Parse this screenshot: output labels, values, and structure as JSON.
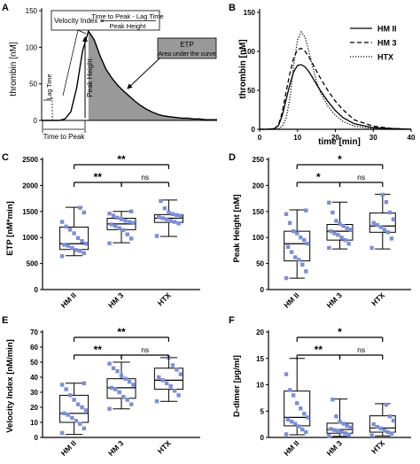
{
  "panels": {
    "A": {
      "letter": "A",
      "ylabel": "thrombin [nM]",
      "yticks": [
        "0",
        "50",
        "100",
        "150"
      ],
      "formula_left": "Velocity Index =",
      "formula_num": "Time to Peak - Lag Time",
      "formula_den": "Peak Height",
      "etp_title": "ETP",
      "etp_sub": "Area under the curve",
      "lag_time": "Lag Time",
      "peak_height": "Peak Height",
      "time_to_peak": "Time to Peak"
    },
    "B": {
      "letter": "B",
      "ylabel": "thrombin [nM]",
      "xlabel": "time [min]",
      "yticks": [
        "0",
        "50",
        "100",
        "150"
      ],
      "xticks": [
        "0",
        "10",
        "20",
        "30",
        "40"
      ],
      "legend": [
        "HM II",
        "HM 3",
        "HTX"
      ]
    },
    "C": {
      "letter": "C",
      "ylabel": "ETP [nM*min]",
      "yticks": [
        "0",
        "500",
        "1000",
        "1500",
        "2000",
        "2500"
      ],
      "categories": [
        "HM II",
        "HM 3",
        "HTX"
      ],
      "sig_top": "**",
      "sig_left": "**",
      "sig_right": "ns"
    },
    "D": {
      "letter": "D",
      "ylabel": "Peak Height [nM]",
      "yticks": [
        "0",
        "50",
        "100",
        "150",
        "200",
        "250"
      ],
      "categories": [
        "HM II",
        "HM 3",
        "HTX"
      ],
      "sig_top": "*",
      "sig_left": "*",
      "sig_right": "ns"
    },
    "E": {
      "letter": "E",
      "ylabel": "Velocity Index [nM/min]",
      "yticks": [
        "0",
        "10",
        "20",
        "30",
        "40",
        "50",
        "60",
        "70"
      ],
      "categories": [
        "HM II",
        "HM 3",
        "HTX"
      ],
      "sig_top": "**",
      "sig_left": "**",
      "sig_right": "ns"
    },
    "F": {
      "letter": "F",
      "ylabel": "D-dimer [µg/ml]",
      "yticks": [
        "0",
        "5",
        "10",
        "15",
        "20"
      ],
      "categories": [
        "HM II",
        "HM 3",
        "HTX"
      ],
      "sig_top": "*",
      "sig_left": "**",
      "sig_right": "ns"
    }
  },
  "colors": {
    "box_points": "#7b8fd6",
    "area": "#999999"
  },
  "chart_data": [
    {
      "id": "A",
      "type": "area",
      "xlabel": "",
      "ylabel": "thrombin [nM]",
      "ylim": [
        0,
        150
      ],
      "x": [
        0,
        1,
        2,
        3,
        4,
        5,
        6,
        7,
        8,
        9,
        10,
        11,
        12,
        13,
        14,
        15,
        16,
        17,
        18,
        19,
        20,
        21,
        22,
        23,
        24,
        25,
        26,
        27,
        28,
        29,
        30
      ],
      "series": [
        {
          "values": [
            0,
            0,
            0,
            0,
            2,
            12,
            45,
            95,
            122,
            110,
            88,
            70,
            58,
            48,
            40,
            33,
            26,
            20,
            15,
            11,
            8,
            6,
            5,
            4,
            3,
            3,
            2,
            2,
            1,
            1,
            1
          ]
        }
      ]
    },
    {
      "id": "B",
      "type": "line",
      "xlabel": "time [min]",
      "ylabel": "thrombin [nM]",
      "xlim": [
        0,
        40
      ],
      "ylim": [
        0,
        150
      ],
      "legend_position": "top-right",
      "x": [
        0,
        2,
        4,
        5,
        6,
        7,
        8,
        9,
        10,
        11,
        12,
        13,
        14,
        15,
        16,
        18,
        20,
        22,
        25,
        30,
        35,
        40
      ],
      "series": [
        {
          "name": "HM II",
          "style": "solid",
          "values": [
            0,
            0,
            1,
            5,
            18,
            38,
            58,
            74,
            82,
            83,
            80,
            74,
            66,
            58,
            50,
            36,
            24,
            15,
            7,
            2,
            1,
            0
          ]
        },
        {
          "name": "HM 3",
          "style": "dashed",
          "values": [
            0,
            0,
            1,
            6,
            22,
            48,
            72,
            92,
            102,
            104,
            100,
            93,
            84,
            75,
            66,
            50,
            36,
            25,
            12,
            4,
            1,
            0
          ]
        },
        {
          "name": "HTX",
          "style": "dotted",
          "values": [
            0,
            0,
            0,
            1,
            4,
            14,
            40,
            82,
            115,
            125,
            118,
            100,
            80,
            62,
            48,
            30,
            18,
            10,
            4,
            1,
            0,
            0
          ]
        }
      ]
    },
    {
      "id": "C",
      "type": "box",
      "ylabel": "ETP [nM*min]",
      "ylim": [
        0,
        2500
      ],
      "categories": [
        "HM II",
        "HM 3",
        "HTX"
      ],
      "boxes": [
        {
          "min": 650,
          "q1": 770,
          "median": 880,
          "q3": 1200,
          "max": 1580
        },
        {
          "min": 900,
          "q1": 1150,
          "median": 1260,
          "q3": 1370,
          "max": 1500
        },
        {
          "min": 1020,
          "q1": 1290,
          "median": 1370,
          "q3": 1440,
          "max": 1720
        }
      ],
      "points": [
        [
          640,
          700,
          740,
          760,
          800,
          840,
          860,
          880,
          930,
          990,
          1080,
          1150,
          1210,
          1300,
          1480,
          1570
        ],
        [
          890,
          980,
          1060,
          1140,
          1180,
          1220,
          1250,
          1280,
          1300,
          1320,
          1350,
          1380,
          1420,
          1460,
          1500
        ],
        [
          1030,
          1270,
          1300,
          1320,
          1350,
          1370,
          1390,
          1410,
          1430,
          1450,
          1480,
          1560,
          1700
        ]
      ]
    },
    {
      "id": "D",
      "type": "box",
      "ylabel": "Peak Height [nM]",
      "ylim": [
        0,
        250
      ],
      "categories": [
        "HM II",
        "HM 3",
        "HTX"
      ],
      "boxes": [
        {
          "min": 22,
          "q1": 55,
          "median": 88,
          "q3": 112,
          "max": 153
        },
        {
          "min": 78,
          "q1": 95,
          "median": 112,
          "q3": 125,
          "max": 168
        },
        {
          "min": 78,
          "q1": 110,
          "median": 122,
          "q3": 147,
          "max": 183
        }
      ],
      "points": [
        [
          22,
          35,
          48,
          57,
          62,
          72,
          82,
          88,
          95,
          100,
          108,
          112,
          128,
          145,
          152
        ],
        [
          80,
          88,
          95,
          100,
          105,
          108,
          112,
          115,
          118,
          122,
          126,
          132,
          148,
          167
        ],
        [
          80,
          98,
          110,
          115,
          120,
          124,
          128,
          135,
          148,
          168,
          182
        ]
      ]
    },
    {
      "id": "E",
      "type": "box",
      "ylabel": "Velocity Index [nM/min]",
      "ylim": [
        0,
        70
      ],
      "categories": [
        "HM II",
        "HM 3",
        "HTX"
      ],
      "boxes": [
        {
          "min": 2,
          "q1": 10,
          "median": 16,
          "q3": 28,
          "max": 36
        },
        {
          "min": 19,
          "q1": 26,
          "median": 33,
          "q3": 39,
          "max": 50
        },
        {
          "min": 24,
          "q1": 32,
          "median": 38,
          "q3": 46,
          "max": 53
        }
      ],
      "points": [
        [
          3,
          6,
          9,
          11,
          13,
          15,
          16,
          18,
          20,
          22,
          25,
          28,
          32,
          35,
          36
        ],
        [
          19,
          22,
          25,
          27,
          30,
          32,
          33,
          35,
          37,
          39,
          41,
          44,
          46,
          49
        ],
        [
          24,
          28,
          31,
          34,
          36,
          38,
          40,
          42,
          45,
          48,
          53
        ]
      ]
    },
    {
      "id": "F",
      "type": "box",
      "ylabel": "D-dimer [µg/ml]",
      "ylim": [
        0,
        20
      ],
      "categories": [
        "HM II",
        "HM 3",
        "HTX"
      ],
      "boxes": [
        {
          "min": 0.5,
          "q1": 2.2,
          "median": 3.8,
          "q3": 8.8,
          "max": 15
        },
        {
          "min": 0.2,
          "q1": 0.8,
          "median": 1.5,
          "q3": 2.7,
          "max": 7.3
        },
        {
          "min": 0.3,
          "q1": 1.0,
          "median": 1.8,
          "q3": 4.1,
          "max": 6.4
        }
      ],
      "points": [
        [
          0.6,
          1.0,
          1.5,
          2.1,
          2.6,
          3.0,
          3.4,
          3.8,
          4.5,
          5.5,
          6.5,
          8.0,
          9.0,
          12.0
        ],
        [
          0.3,
          0.5,
          0.8,
          1.0,
          1.2,
          1.4,
          1.6,
          1.9,
          2.2,
          2.6,
          3.0,
          4.0,
          7.2
        ],
        [
          0.4,
          0.7,
          1.0,
          1.3,
          1.7,
          2.0,
          2.5,
          3.2,
          4.0,
          6.2
        ]
      ]
    }
  ]
}
